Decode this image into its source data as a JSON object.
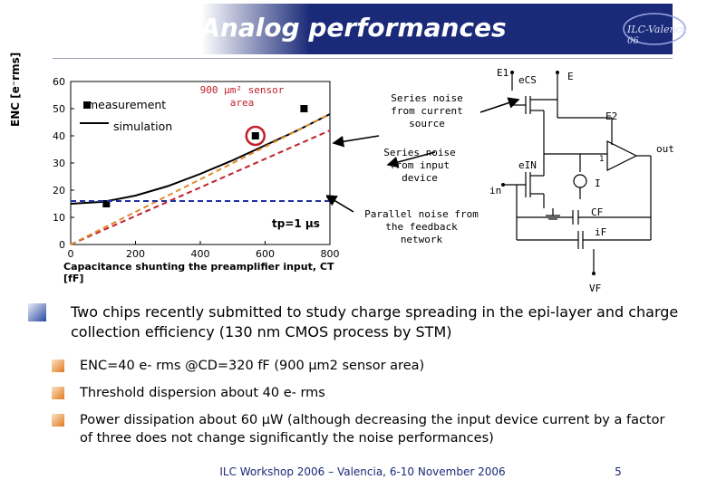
{
  "slide": {
    "title": "Analog performances",
    "logo_text": "ILC-Valencia 06",
    "footer": "ILC Workshop 2006 – Valencia, 6-10 November 2006",
    "page_number": "5"
  },
  "chart": {
    "y_axis_label": "ENC [e⁻rms]",
    "x_axis_label": "Capacitance shunting the preamplifier input, CT [fF]",
    "legend": {
      "measurement": "measurement",
      "simulation": "simulation"
    },
    "tp_label": "tp=1 μs",
    "sensor_annotation": "900 μm² sensor area"
  },
  "chart_data": {
    "type": "line",
    "xlabel": "Capacitance shunting the preamplifier input, CT [fF]",
    "ylabel": "ENC [e- rms]",
    "xlim": [
      0,
      800
    ],
    "ylim": [
      0,
      60
    ],
    "x_ticks": [
      0,
      200,
      400,
      600,
      800
    ],
    "y_ticks": [
      0,
      10,
      20,
      30,
      40,
      50,
      60
    ],
    "series": [
      {
        "name": "measurement",
        "kind": "scatter",
        "x": [
          110,
          570,
          720
        ],
        "y": [
          15,
          40,
          50
        ]
      },
      {
        "name": "simulation",
        "kind": "line",
        "x": [
          0,
          100,
          200,
          300,
          400,
          500,
          600,
          700,
          800
        ],
        "y": [
          15,
          15.7,
          18,
          21.5,
          26,
          31,
          36.5,
          42,
          48
        ]
      },
      {
        "kind": "dashed",
        "color": "#c0202a",
        "x": [
          0,
          800
        ],
        "y": [
          0,
          42
        ]
      },
      {
        "kind": "dashed",
        "color": "#e08a2e",
        "x": [
          0,
          800
        ],
        "y": [
          0,
          48
        ]
      },
      {
        "kind": "dashed",
        "color": "#2030a0",
        "x": [
          0,
          800
        ],
        "y": [
          16,
          16
        ]
      }
    ]
  },
  "circuit": {
    "labels": {
      "e1": "E1",
      "ecs": "eCS",
      "e": "E",
      "e2": "E2",
      "out": "out",
      "ein": "eIN",
      "in": "in",
      "i": "I",
      "cf": "CF",
      "if": "iF",
      "vf": "VF",
      "amp_gain": "1"
    },
    "annotations": {
      "series_current": "Series noise from current source",
      "series_input": "Series noise from input device",
      "parallel": "Parallel noise from the feedback network"
    }
  },
  "content": {
    "main_bullet": "Two chips recently submitted to study charge spreading in the epi-layer and charge collection efficiency (130 nm CMOS process by STM)",
    "sub_bullets": [
      "ENC=40 e- rms @CD=320 fF (900 μm2 sensor area)",
      "Threshold dispersion about 40 e- rms",
      "Power dissipation about 60 μW (although decreasing the input device current by a factor of three does not change significantly the noise performances)"
    ]
  },
  "colors": {
    "title_bar": "#1a2a78",
    "sim_line": "#000000",
    "red_dash": "#c0202a",
    "orange_dash": "#e08a2e",
    "blue_dash": "#2030a0",
    "highlight_circle": "#c0202a",
    "bullet_main": "#3a5fb0",
    "bullet_sub": "#e07a20"
  }
}
